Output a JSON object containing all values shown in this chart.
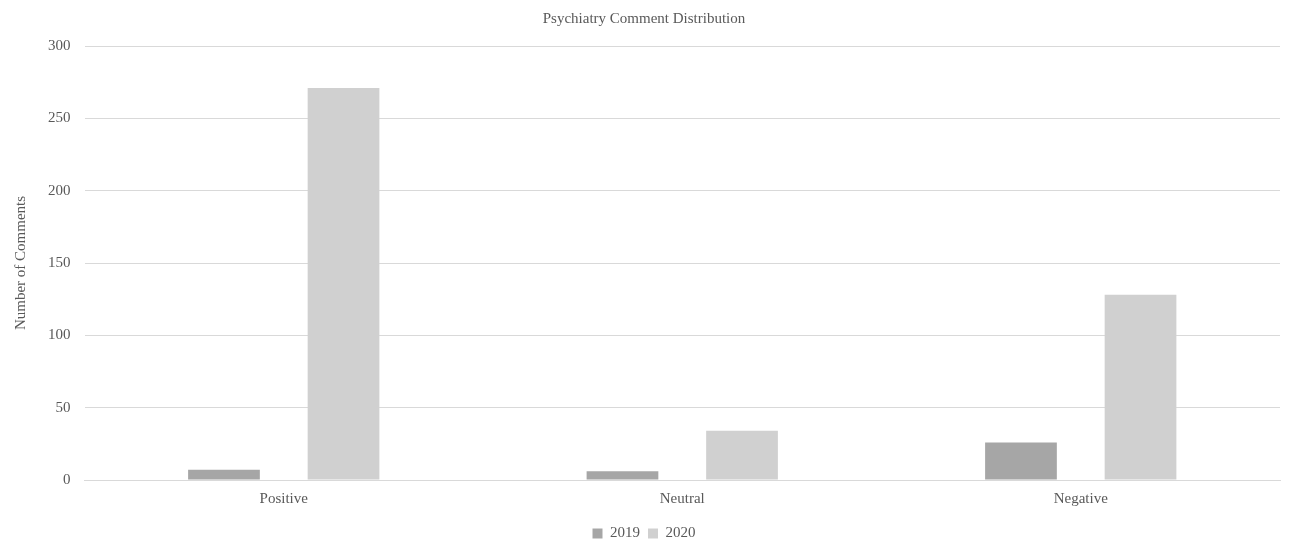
{
  "chart_data": {
    "type": "bar",
    "title": "Psychiatry Comment Distribution",
    "ylabel": "Number of Comments",
    "categories": [
      "Positive",
      "Neutral",
      "Negative"
    ],
    "series": [
      {
        "name": "2019",
        "color": "#a6a6a6",
        "values": [
          7,
          6,
          26
        ]
      },
      {
        "name": "2020",
        "color": "#d0d0d0",
        "values": [
          271,
          34,
          128
        ]
      }
    ],
    "ylim": [
      0,
      300
    ],
    "yticks": [
      0,
      50,
      100,
      150,
      200,
      250,
      300
    ],
    "grid": "y",
    "legend": "bottom"
  }
}
